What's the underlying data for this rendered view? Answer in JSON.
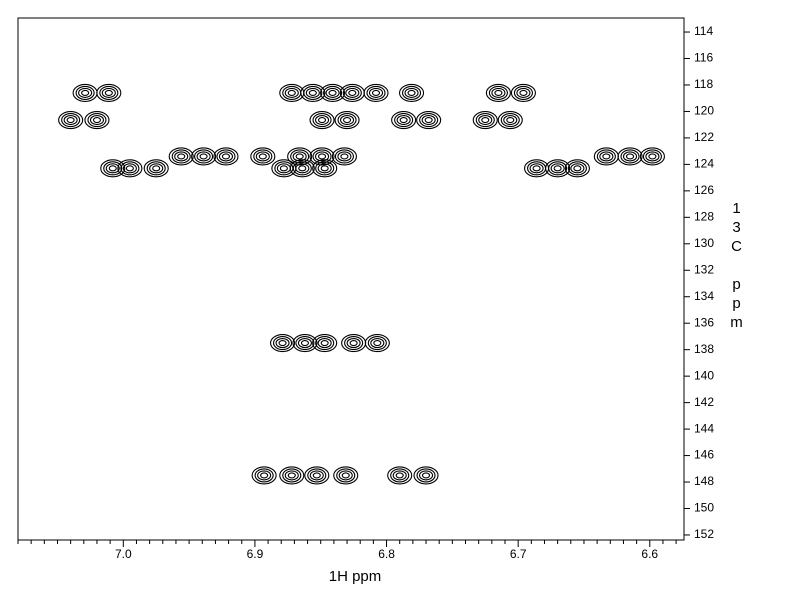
{
  "chart_data": {
    "type": "contour",
    "x_label": "1H ppm",
    "y_label": "13C ppm",
    "xlim": [
      7.08,
      6.574
    ],
    "ylim": [
      112.94,
      152.38
    ],
    "xticks": [
      {
        "value": 7.0,
        "label": "7.0"
      },
      6.9,
      6.8,
      6.7,
      6.6
    ],
    "yticks": [
      114,
      116,
      118,
      120,
      122,
      124,
      126,
      128,
      130,
      132,
      134,
      136,
      138,
      140,
      142,
      144,
      146,
      148,
      150,
      152
    ],
    "color": "#000000",
    "x": [
      7.029,
      7.011,
      6.872,
      6.856,
      6.841,
      6.826,
      6.808,
      6.781,
      6.715,
      6.696,
      7.04,
      7.02,
      6.849,
      6.83,
      6.787,
      6.768,
      6.725,
      6.706,
      6.956,
      6.939,
      6.922,
      6.894,
      6.866,
      6.849,
      6.832,
      6.633,
      6.615,
      6.598,
      7.008,
      6.995,
      6.975,
      6.878,
      6.864,
      6.847,
      6.686,
      6.67,
      6.655,
      6.879,
      6.862,
      6.847,
      6.825,
      6.807,
      6.893,
      6.872,
      6.853,
      6.831,
      6.79,
      6.77
    ],
    "values": [
      118.6,
      118.6,
      118.6,
      118.6,
      118.6,
      118.6,
      118.6,
      118.6,
      118.6,
      118.6,
      120.65,
      120.65,
      120.65,
      120.65,
      120.65,
      120.65,
      120.65,
      120.65,
      123.4,
      123.4,
      123.4,
      123.4,
      123.4,
      123.4,
      123.4,
      123.4,
      123.4,
      123.4,
      124.3,
      124.3,
      124.3,
      124.3,
      124.3,
      124.3,
      124.3,
      124.3,
      124.3,
      137.5,
      137.5,
      137.5,
      137.5,
      137.5,
      147.5,
      147.5,
      147.5,
      147.5,
      147.5,
      147.5
    ]
  }
}
